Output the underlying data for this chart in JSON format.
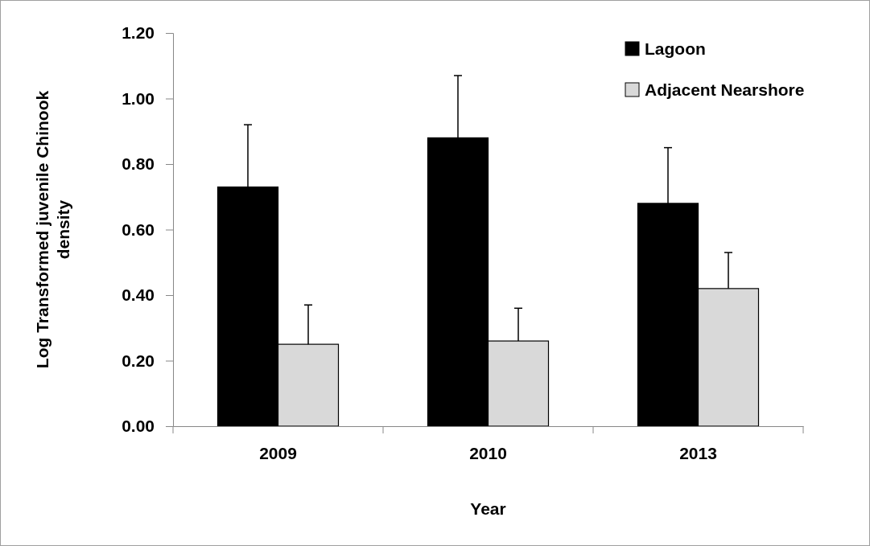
{
  "chart_data": {
    "type": "bar",
    "xlabel": "Year",
    "ylabel": "Log Transformed juvenile Chinook density",
    "categories": [
      "2009",
      "2010",
      "2013"
    ],
    "series": [
      {
        "name": "Lagoon",
        "color": "#000000",
        "values": [
          0.73,
          0.88,
          0.68
        ],
        "errors": [
          [
            0.73,
            0.92
          ],
          [
            0.88,
            1.07
          ],
          [
            0.68,
            0.85
          ]
        ]
      },
      {
        "name": "Adjacent Nearshore",
        "color": "#d9d9d9",
        "values": [
          0.25,
          0.26,
          0.42
        ],
        "errors": [
          [
            0.25,
            0.37
          ],
          [
            0.26,
            0.36
          ],
          [
            0.42,
            0.53
          ]
        ]
      }
    ],
    "ylim": [
      0,
      1.2
    ],
    "yticks": [
      {
        "value": 0,
        "label": "0.00"
      },
      {
        "value": 0.2,
        "label": "0.20"
      },
      {
        "value": 0.4,
        "label": "0.40"
      },
      {
        "value": 0.6,
        "label": "0.60"
      },
      {
        "value": 0.8,
        "label": "0.80"
      },
      {
        "value": 1,
        "label": "1.00"
      },
      {
        "value": 1.2,
        "label": "1.20"
      }
    ],
    "legend": "top right",
    "grid": false
  }
}
